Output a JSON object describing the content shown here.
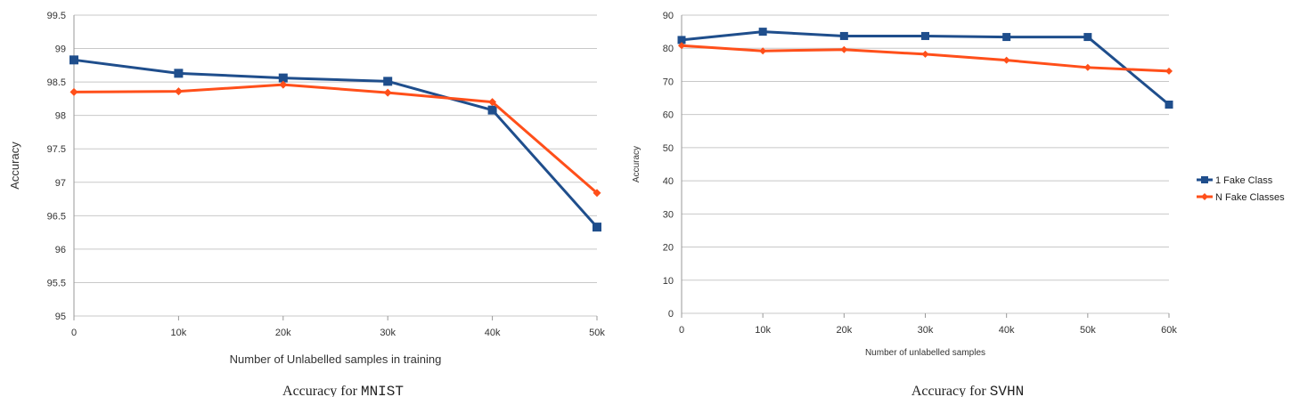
{
  "charts": [
    {
      "caption_prefix": "Accuracy for ",
      "caption_code": "MNIST"
    },
    {
      "caption_prefix": "Accuracy for ",
      "caption_code": "SVHN"
    }
  ],
  "legend": {
    "items": [
      "1 Fake Class",
      "N Fake Classes"
    ]
  },
  "colors": {
    "series1": "#1f4e8c",
    "series2": "#ff4f1a",
    "grid": "#c8c8c8"
  },
  "chart_data": [
    {
      "type": "line",
      "title": "",
      "xlabel": "Number of Unlabelled samples in training",
      "ylabel": "Accuracy",
      "categories": [
        "0",
        "10k",
        "20k",
        "30k",
        "40k",
        "50k"
      ],
      "ylim": [
        95,
        99.5
      ],
      "yticks": [
        "95",
        "95.5",
        "96",
        "96.5",
        "97",
        "97.5",
        "98",
        "98.5",
        "99",
        "99.5"
      ],
      "grid": true,
      "series": [
        {
          "name": "1 Fake Class",
          "values": [
            98.83,
            98.63,
            98.56,
            98.51,
            98.08,
            96.33
          ]
        },
        {
          "name": "N Fake Classes",
          "values": [
            98.35,
            98.36,
            98.46,
            98.34,
            98.2,
            96.84
          ]
        }
      ]
    },
    {
      "type": "line",
      "title": "",
      "xlabel": "Number of unlabelled samples",
      "ylabel": "Accuracy",
      "categories": [
        "0",
        "10k",
        "20k",
        "30k",
        "40k",
        "50k",
        "60k"
      ],
      "ylim": [
        0,
        90
      ],
      "yticks": [
        "0",
        "10",
        "20",
        "30",
        "40",
        "50",
        "60",
        "70",
        "80",
        "90"
      ],
      "grid": true,
      "legend_position": "right",
      "series": [
        {
          "name": "1 Fake Class",
          "values": [
            82.5,
            85,
            83.7,
            83.7,
            83.4,
            83.4,
            63
          ]
        },
        {
          "name": "N Fake Classes",
          "values": [
            80.8,
            79.2,
            79.6,
            78.2,
            76.4,
            74.2,
            73.1
          ]
        }
      ]
    }
  ]
}
